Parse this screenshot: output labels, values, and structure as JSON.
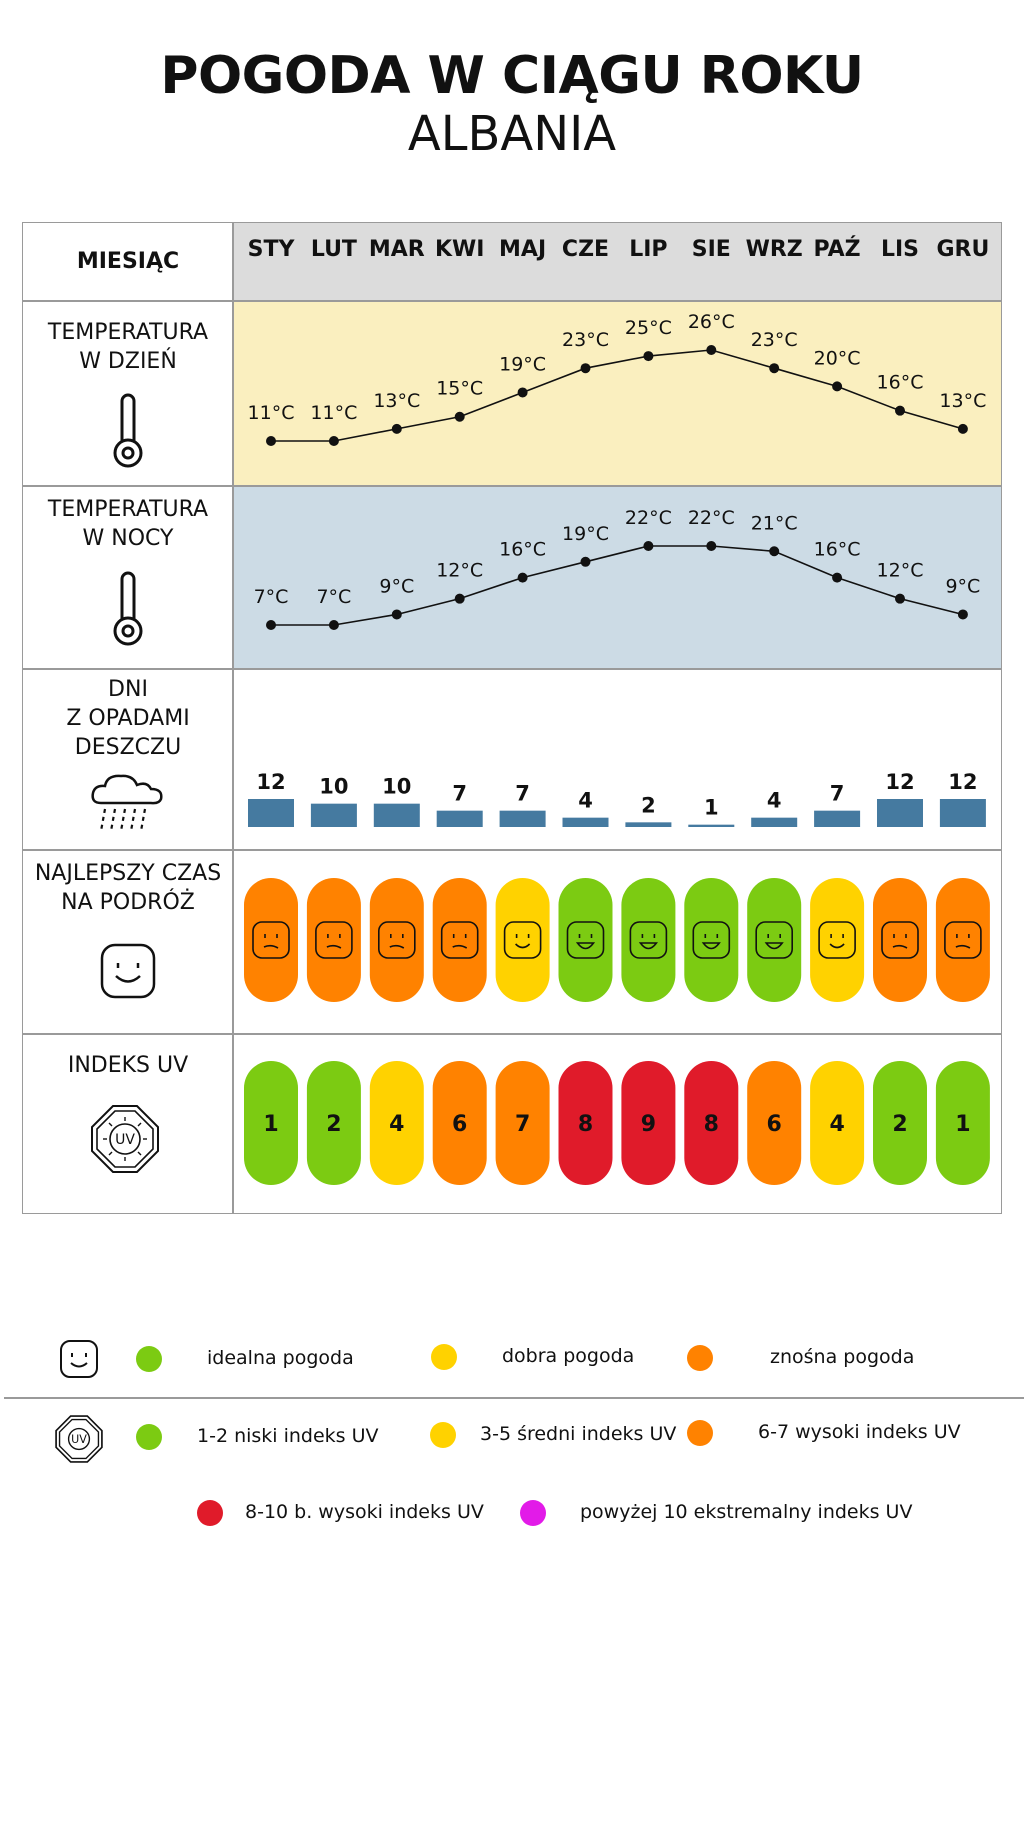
{
  "header": {
    "title": "POGODA W CIĄGU ROKU",
    "subtitle": "ALBANIA"
  },
  "labels": {
    "month": "MIESIĄC",
    "day_temp": [
      "TEMPERATURA",
      "W DZIEŃ"
    ],
    "night_temp": [
      "TEMPERATURA",
      "W NOCY"
    ],
    "rain": [
      "DNI",
      "Z OPADAMI",
      "DESZCZU"
    ],
    "best_time": [
      "NAJLEPSZY CZAS",
      "NA PODRÓŻ"
    ],
    "uv": [
      "INDEKS UV"
    ]
  },
  "colors": {
    "day_bg": "#faefbf",
    "night_bg": "#ccdbe5",
    "header_bg": "#dcdcdc",
    "bar": "#457aa0",
    "green": "#7ccb12",
    "yellow": "#ffd200",
    "orange": "#ff8200",
    "red": "#e01b2a",
    "purple": "#e21be8"
  },
  "chart_data": {
    "type": "table",
    "months": [
      "STY",
      "LUT",
      "MAR",
      "KWI",
      "MAJ",
      "CZE",
      "LIP",
      "SIE",
      "WRZ",
      "PAŹ",
      "LIS",
      "GRU"
    ],
    "day_temp": [
      11,
      11,
      13,
      15,
      19,
      23,
      25,
      26,
      23,
      20,
      16,
      13
    ],
    "day_temp_labels": [
      "11°C",
      "11°C",
      "13°C",
      "15°C",
      "19°C",
      "23°C",
      "25°C",
      "26°C",
      "23°C",
      "20°C",
      "16°C",
      "13°C"
    ],
    "night_temp": [
      7,
      7,
      9,
      12,
      16,
      19,
      22,
      22,
      21,
      16,
      12,
      9
    ],
    "night_temp_labels": [
      "7°C",
      "7°C",
      "9°C",
      "12°C",
      "16°C",
      "19°C",
      "22°C",
      "22°C",
      "21°C",
      "16°C",
      "12°C",
      "9°C"
    ],
    "rain_days": [
      12,
      10,
      10,
      7,
      7,
      4,
      2,
      1,
      4,
      7,
      12,
      12
    ],
    "rain_labels": [
      "12",
      "10",
      "10",
      "7",
      "7",
      "4",
      "2",
      "1",
      "4",
      "7",
      "12",
      "12"
    ],
    "travel_rating": [
      "orange",
      "orange",
      "orange",
      "orange",
      "yellow",
      "green",
      "green",
      "green",
      "green",
      "yellow",
      "orange",
      "orange"
    ],
    "uv_index": [
      1,
      2,
      4,
      6,
      7,
      8,
      9,
      8,
      6,
      4,
      2,
      1
    ],
    "uv_labels": [
      "1",
      "2",
      "4",
      "6",
      "7",
      "8",
      "9",
      "8",
      "6",
      "4",
      "2",
      "1"
    ],
    "uv_colors": [
      "green",
      "green",
      "yellow",
      "orange",
      "orange",
      "red",
      "red",
      "red",
      "orange",
      "yellow",
      "green",
      "green"
    ]
  },
  "legend": {
    "weather": [
      {
        "color": "green",
        "label": "idealna pogoda"
      },
      {
        "color": "yellow",
        "label": "dobra pogoda"
      },
      {
        "color": "orange",
        "label": "znośna pogoda"
      }
    ],
    "uv": [
      {
        "color": "green",
        "label": "1-2 niski indeks UV"
      },
      {
        "color": "yellow",
        "label": "3-5 średni indeks UV"
      },
      {
        "color": "orange",
        "label": "6-7 wysoki indeks UV"
      },
      {
        "color": "red",
        "label": "8-10 b. wysoki indeks UV"
      },
      {
        "color": "purple",
        "label": "powyżej 10 ekstremalny indeks UV"
      }
    ],
    "uv_icon_text": "UV"
  }
}
